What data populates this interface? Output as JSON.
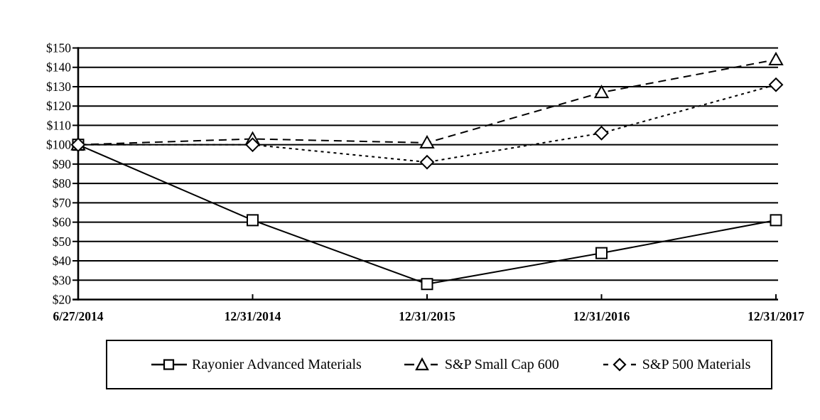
{
  "chart_data": {
    "type": "line",
    "title": "",
    "xlabel": "",
    "ylabel": "",
    "x_categories": [
      "6/27/2014",
      "12/31/2014",
      "12/31/2015",
      "12/31/2016",
      "12/31/2017"
    ],
    "ylim": [
      20,
      150
    ],
    "y_tick_step": 10,
    "y_tick_prefix": "$",
    "y_tick_labels": [
      "$20",
      "$30",
      "$40",
      "$50",
      "$60",
      "$70",
      "$80",
      "$90",
      "$100",
      "$110",
      "$120",
      "$130",
      "$140",
      "$150"
    ],
    "grid": true,
    "legend_position": "bottom",
    "colors": {
      "foreground": "#000000",
      "background": "#ffffff"
    },
    "series": [
      {
        "name": "Rayonier Advanced Materials",
        "marker": "square",
        "line_style": "solid",
        "values": [
          100,
          61,
          28,
          44,
          61
        ]
      },
      {
        "name": "S&P Small Cap 600",
        "marker": "triangle",
        "line_style": "long-dash",
        "values": [
          100,
          103,
          101,
          127,
          144
        ]
      },
      {
        "name": "S&P 500 Materials",
        "marker": "diamond",
        "line_style": "short-dash",
        "values": [
          100,
          100,
          91,
          106,
          131
        ]
      }
    ]
  }
}
